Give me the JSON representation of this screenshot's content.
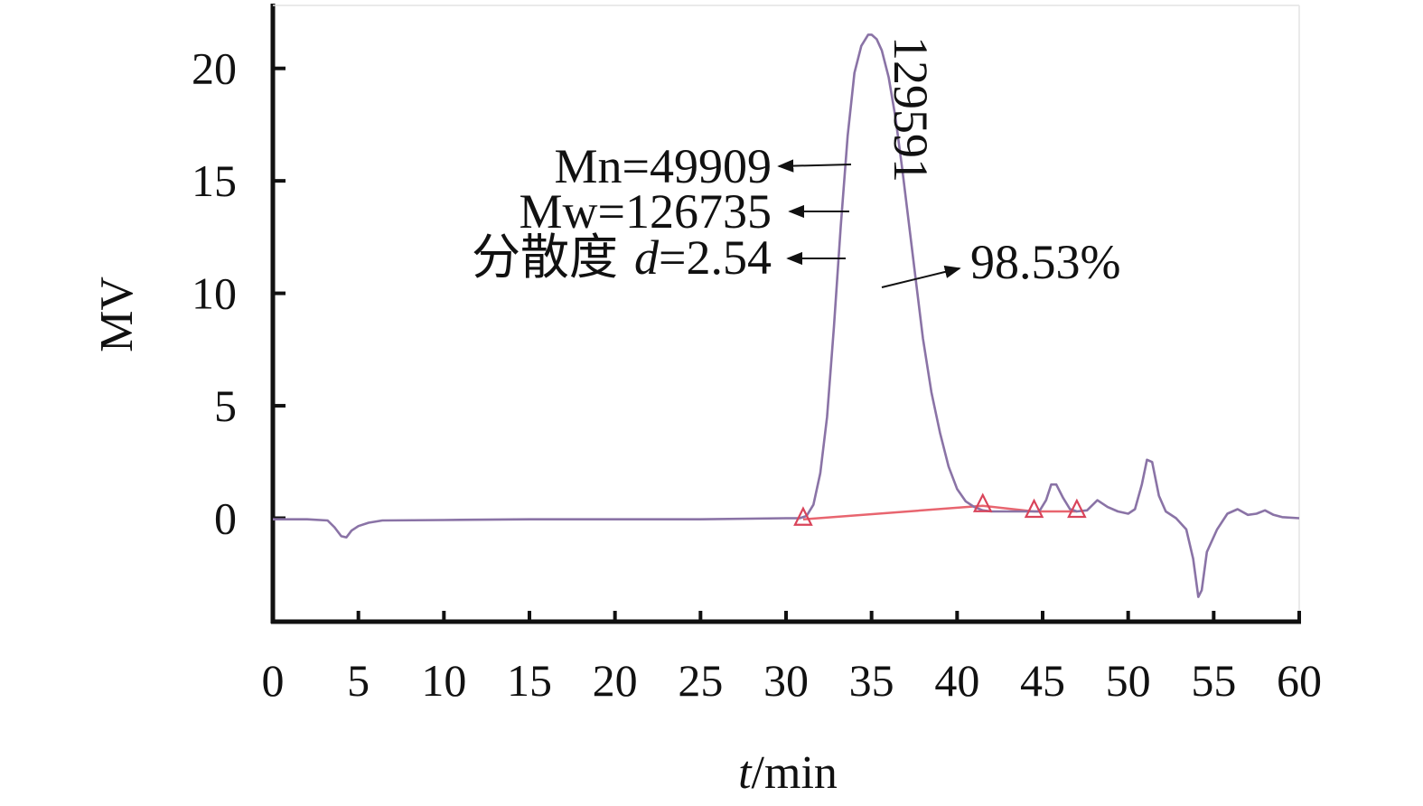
{
  "chart_data": {
    "type": "line",
    "xlabel_italic": "t",
    "xlabel_rest": "/min",
    "ylabel": "MV",
    "xlim": [
      0,
      60
    ],
    "ylim": [
      -4.6,
      22.8
    ],
    "xticks": [
      0,
      5,
      10,
      15,
      20,
      25,
      30,
      35,
      40,
      45,
      50,
      55,
      60
    ],
    "yticks": [
      0,
      5,
      10,
      15,
      20
    ],
    "grid": false,
    "colors": {
      "signal": "#8a73a6",
      "baseline": "#e8656f",
      "markers": "#d9445a",
      "axis": "#111111"
    },
    "series": [
      {
        "x": [
          0,
          2,
          3.2,
          3.6,
          4.0,
          4.3,
          4.6,
          5.0,
          5.6,
          6.4,
          10,
          15,
          20,
          25,
          30,
          30.8,
          31.2,
          31.6,
          32.0,
          32.4,
          32.8,
          33.2,
          33.6,
          34.0,
          34.4,
          34.8,
          35.0,
          35.3,
          35.6,
          36.0,
          36.4,
          36.8,
          37.2,
          37.6,
          38.0,
          38.5,
          39.0,
          39.5,
          40.0,
          40.5,
          41.0,
          41.5,
          42.0,
          43.0,
          44.0,
          44.8,
          45.2,
          45.5,
          45.8,
          46.2,
          46.6,
          47.0,
          47.6,
          48.2,
          48.8,
          49.4,
          50.0,
          50.4,
          50.8,
          51.1,
          51.4,
          51.8,
          52.2,
          52.8,
          53.4,
          53.8,
          54.1,
          54.3,
          54.6,
          55.2,
          55.8,
          56.4,
          57.0,
          57.5,
          58.0,
          58.5,
          59.0,
          60.0
        ],
        "y": [
          -0.05,
          -0.05,
          -0.1,
          -0.4,
          -0.8,
          -0.85,
          -0.55,
          -0.35,
          -0.2,
          -0.1,
          -0.08,
          -0.05,
          -0.05,
          -0.05,
          0.0,
          0.0,
          0.1,
          0.6,
          2.0,
          4.5,
          8.5,
          13.0,
          17.0,
          19.8,
          21.0,
          21.5,
          21.5,
          21.3,
          20.8,
          19.6,
          17.8,
          15.5,
          13.0,
          10.5,
          8.0,
          5.6,
          3.8,
          2.3,
          1.3,
          0.75,
          0.5,
          0.35,
          0.3,
          0.3,
          0.3,
          0.3,
          0.8,
          1.5,
          1.5,
          0.9,
          0.4,
          0.3,
          0.35,
          0.8,
          0.5,
          0.3,
          0.2,
          0.4,
          1.5,
          2.6,
          2.5,
          1.0,
          0.3,
          0.0,
          -0.5,
          -1.8,
          -3.5,
          -3.2,
          -1.5,
          -0.5,
          0.2,
          0.4,
          0.15,
          0.2,
          0.35,
          0.15,
          0.05,
          0.0
        ]
      }
    ],
    "baseline": {
      "x": [
        31.0,
        41.5,
        44.5,
        47.0
      ],
      "y": [
        -0.05,
        0.55,
        0.3,
        0.3
      ]
    },
    "integration_markers_x": [
      31.0,
      41.5,
      44.5,
      47.0
    ],
    "peak_label": "129591",
    "annotations": {
      "mn": "Mn=49909",
      "mw": "Mw=126735",
      "dispersity_prefix": "分散度",
      "dispersity_var": "d",
      "dispersity_value": "=2.54",
      "area_percent": "98.53%"
    }
  }
}
